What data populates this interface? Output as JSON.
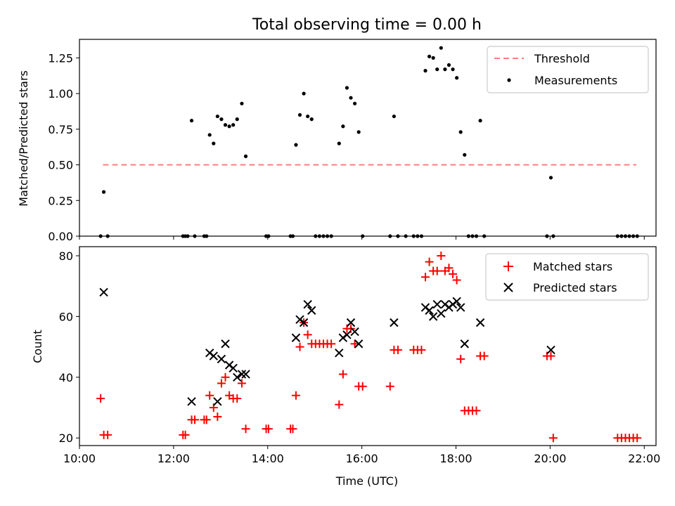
{
  "title": "Total observing time = 0.00 h",
  "colors": {
    "threshold": "#ff7f7f",
    "measurement": "#000000",
    "matched": "#ff0000",
    "predicted": "#000000"
  },
  "chart_data": [
    {
      "type": "scatter",
      "ylabel": "Matched/Predicted stars",
      "xlabel": "",
      "xlim": [
        "10:00",
        "22:15"
      ],
      "ylim": [
        0,
        1.38
      ],
      "yticks": [
        0.0,
        0.25,
        0.5,
        0.75,
        1.0,
        1.25
      ],
      "ytick_labels": [
        "0.00",
        "0.25",
        "0.50",
        "0.75",
        "1.00",
        "1.25"
      ],
      "legend_position": "top-right",
      "legend": [
        "Threshold",
        "Measurements"
      ],
      "threshold": {
        "name": "Threshold",
        "y": 0.5,
        "x_start": "10:30",
        "x_end": "21:50"
      },
      "series": [
        {
          "name": "Measurements",
          "points": [
            [
              "10:27",
              0.0
            ],
            [
              "10:31",
              0.31
            ],
            [
              "10:36",
              0.0
            ],
            [
              "12:12",
              0.0
            ],
            [
              "12:15",
              0.0
            ],
            [
              "12:18",
              0.0
            ],
            [
              "12:23",
              0.81
            ],
            [
              "12:27",
              0.0
            ],
            [
              "12:39",
              0.0
            ],
            [
              "12:42",
              0.0
            ],
            [
              "12:46",
              0.71
            ],
            [
              "12:51",
              0.65
            ],
            [
              "12:56",
              0.84
            ],
            [
              "13:01",
              0.82
            ],
            [
              "13:06",
              0.78
            ],
            [
              "13:11",
              0.77
            ],
            [
              "13:16",
              0.78
            ],
            [
              "13:21",
              0.82
            ],
            [
              "13:27",
              0.93
            ],
            [
              "13:32",
              0.56
            ],
            [
              "13:58",
              0.0
            ],
            [
              "14:01",
              0.0
            ],
            [
              "14:29",
              0.0
            ],
            [
              "14:32",
              0.0
            ],
            [
              "14:36",
              0.64
            ],
            [
              "14:41",
              0.85
            ],
            [
              "14:46",
              1.0
            ],
            [
              "14:51",
              0.84
            ],
            [
              "14:56",
              0.82
            ],
            [
              "15:01",
              0.0
            ],
            [
              "15:06",
              0.0
            ],
            [
              "15:11",
              0.0
            ],
            [
              "15:16",
              0.0
            ],
            [
              "15:21",
              0.0
            ],
            [
              "15:31",
              0.65
            ],
            [
              "15:36",
              0.77
            ],
            [
              "15:41",
              1.04
            ],
            [
              "15:46",
              0.97
            ],
            [
              "15:51",
              0.93
            ],
            [
              "15:56",
              0.73
            ],
            [
              "16:01",
              0.0
            ],
            [
              "16:36",
              0.0
            ],
            [
              "16:41",
              0.84
            ],
            [
              "16:46",
              0.0
            ],
            [
              "16:56",
              0.0
            ],
            [
              "17:06",
              0.0
            ],
            [
              "17:11",
              0.0
            ],
            [
              "17:16",
              0.0
            ],
            [
              "17:21",
              1.16
            ],
            [
              "17:26",
              1.26
            ],
            [
              "17:31",
              1.25
            ],
            [
              "17:36",
              1.17
            ],
            [
              "17:41",
              1.32
            ],
            [
              "17:46",
              1.17
            ],
            [
              "17:51",
              1.2
            ],
            [
              "17:56",
              1.17
            ],
            [
              "18:01",
              1.11
            ],
            [
              "18:06",
              0.73
            ],
            [
              "18:11",
              0.57
            ],
            [
              "18:16",
              0.0
            ],
            [
              "18:21",
              0.0
            ],
            [
              "18:26",
              0.0
            ],
            [
              "18:31",
              0.81
            ],
            [
              "18:36",
              0.0
            ],
            [
              "19:56",
              0.0
            ],
            [
              "20:01",
              0.41
            ],
            [
              "20:04",
              0.0
            ],
            [
              "21:26",
              0.0
            ],
            [
              "21:31",
              0.0
            ],
            [
              "21:36",
              0.0
            ],
            [
              "21:41",
              0.0
            ],
            [
              "21:46",
              0.0
            ],
            [
              "21:51",
              0.0
            ]
          ]
        }
      ]
    },
    {
      "type": "scatter",
      "ylabel": "Count",
      "xlabel": "Time (UTC)",
      "xlim": [
        "10:00",
        "22:15"
      ],
      "ylim": [
        17.5,
        83
      ],
      "yticks": [
        20,
        40,
        60,
        80
      ],
      "xticks": [
        "10:00",
        "12:00",
        "14:00",
        "16:00",
        "18:00",
        "20:00",
        "22:00"
      ],
      "legend_position": "top-right",
      "legend": [
        "Matched stars",
        "Predicted stars"
      ],
      "series": [
        {
          "name": "Matched stars",
          "marker": "+",
          "points": [
            [
              "10:27",
              33
            ],
            [
              "10:31",
              21
            ],
            [
              "10:36",
              21
            ],
            [
              "12:12",
              21
            ],
            [
              "12:15",
              21
            ],
            [
              "12:23",
              26
            ],
            [
              "12:27",
              26
            ],
            [
              "12:39",
              26
            ],
            [
              "12:42",
              26
            ],
            [
              "12:46",
              34
            ],
            [
              "12:51",
              30
            ],
            [
              "12:56",
              27
            ],
            [
              "13:01",
              38
            ],
            [
              "13:06",
              40
            ],
            [
              "13:11",
              34
            ],
            [
              "13:16",
              33
            ],
            [
              "13:21",
              33
            ],
            [
              "13:27",
              38
            ],
            [
              "13:32",
              23
            ],
            [
              "13:58",
              23
            ],
            [
              "14:01",
              23
            ],
            [
              "14:29",
              23
            ],
            [
              "14:32",
              23
            ],
            [
              "14:36",
              34
            ],
            [
              "14:41",
              50
            ],
            [
              "14:46",
              58
            ],
            [
              "14:51",
              54
            ],
            [
              "14:56",
              51
            ],
            [
              "15:01",
              51
            ],
            [
              "15:06",
              51
            ],
            [
              "15:11",
              51
            ],
            [
              "15:16",
              51
            ],
            [
              "15:21",
              51
            ],
            [
              "15:31",
              31
            ],
            [
              "15:36",
              41
            ],
            [
              "15:41",
              56
            ],
            [
              "15:46",
              56
            ],
            [
              "15:51",
              51
            ],
            [
              "15:56",
              37
            ],
            [
              "16:01",
              37
            ],
            [
              "16:36",
              37
            ],
            [
              "16:41",
              49
            ],
            [
              "16:46",
              49
            ],
            [
              "17:06",
              49
            ],
            [
              "17:11",
              49
            ],
            [
              "17:16",
              49
            ],
            [
              "17:21",
              73
            ],
            [
              "17:26",
              78
            ],
            [
              "17:31",
              75
            ],
            [
              "17:36",
              75
            ],
            [
              "17:41",
              80
            ],
            [
              "17:46",
              75
            ],
            [
              "17:51",
              76
            ],
            [
              "17:56",
              74
            ],
            [
              "18:01",
              72
            ],
            [
              "18:06",
              46
            ],
            [
              "18:11",
              29
            ],
            [
              "18:16",
              29
            ],
            [
              "18:21",
              29
            ],
            [
              "18:26",
              29
            ],
            [
              "18:31",
              47
            ],
            [
              "18:36",
              47
            ],
            [
              "19:56",
              47
            ],
            [
              "20:01",
              47
            ],
            [
              "20:04",
              20
            ],
            [
              "21:26",
              20
            ],
            [
              "21:31",
              20
            ],
            [
              "21:36",
              20
            ],
            [
              "21:41",
              20
            ],
            [
              "21:46",
              20
            ],
            [
              "21:51",
              20
            ]
          ]
        },
        {
          "name": "Predicted stars",
          "marker": "x",
          "points": [
            [
              "10:31",
              68
            ],
            [
              "12:23",
              32
            ],
            [
              "12:46",
              48
            ],
            [
              "12:51",
              47
            ],
            [
              "12:56",
              32
            ],
            [
              "13:01",
              46
            ],
            [
              "13:06",
              51
            ],
            [
              "13:11",
              44
            ],
            [
              "13:16",
              43
            ],
            [
              "13:21",
              40
            ],
            [
              "13:27",
              41
            ],
            [
              "13:32",
              41
            ],
            [
              "14:36",
              53
            ],
            [
              "14:41",
              59
            ],
            [
              "14:46",
              58
            ],
            [
              "14:51",
              64
            ],
            [
              "14:56",
              62
            ],
            [
              "15:31",
              48
            ],
            [
              "15:36",
              53
            ],
            [
              "15:41",
              54
            ],
            [
              "15:46",
              58
            ],
            [
              "15:51",
              55
            ],
            [
              "15:56",
              51
            ],
            [
              "16:41",
              58
            ],
            [
              "17:21",
              63
            ],
            [
              "17:26",
              62
            ],
            [
              "17:31",
              60
            ],
            [
              "17:36",
              64
            ],
            [
              "17:41",
              61
            ],
            [
              "17:46",
              64
            ],
            [
              "17:51",
              63
            ],
            [
              "17:56",
              64
            ],
            [
              "18:01",
              65
            ],
            [
              "18:06",
              63
            ],
            [
              "18:11",
              51
            ],
            [
              "18:31",
              58
            ],
            [
              "20:01",
              49
            ]
          ]
        }
      ]
    }
  ]
}
